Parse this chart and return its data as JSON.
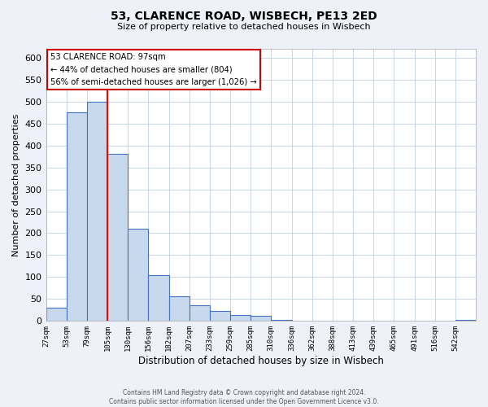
{
  "title": "53, CLARENCE ROAD, WISBECH, PE13 2ED",
  "subtitle": "Size of property relative to detached houses in Wisbech",
  "xlabel": "Distribution of detached houses by size in Wisbech",
  "ylabel": "Number of detached properties",
  "bin_labels": [
    "27sqm",
    "53sqm",
    "79sqm",
    "105sqm",
    "130sqm",
    "156sqm",
    "182sqm",
    "207sqm",
    "233sqm",
    "259sqm",
    "285sqm",
    "310sqm",
    "336sqm",
    "362sqm",
    "388sqm",
    "413sqm",
    "439sqm",
    "465sqm",
    "491sqm",
    "516sqm",
    "542sqm"
  ],
  "bar_heights": [
    30,
    475,
    500,
    380,
    210,
    105,
    57,
    35,
    22,
    13,
    12,
    2,
    1,
    0,
    0,
    0,
    0,
    0,
    0,
    1,
    2
  ],
  "bar_color": "#c9d9ed",
  "bar_edge_color": "#4472c4",
  "ylim": [
    0,
    620
  ],
  "yticks": [
    0,
    50,
    100,
    150,
    200,
    250,
    300,
    350,
    400,
    450,
    500,
    550,
    600
  ],
  "vline_x": 3,
  "vline_color": "red",
  "annotation_line1": "53 CLARENCE ROAD: 97sqm",
  "annotation_line2": "← 44% of detached houses are smaller (804)",
  "annotation_line3": "56% of semi-detached houses are larger (1,026) →",
  "footer_text": "Contains HM Land Registry data © Crown copyright and database right 2024.\nContains public sector information licensed under the Open Government Licence v3.0.",
  "background_color": "#eef2f8",
  "plot_background": "#ffffff",
  "grid_color": "#c8d4e8"
}
